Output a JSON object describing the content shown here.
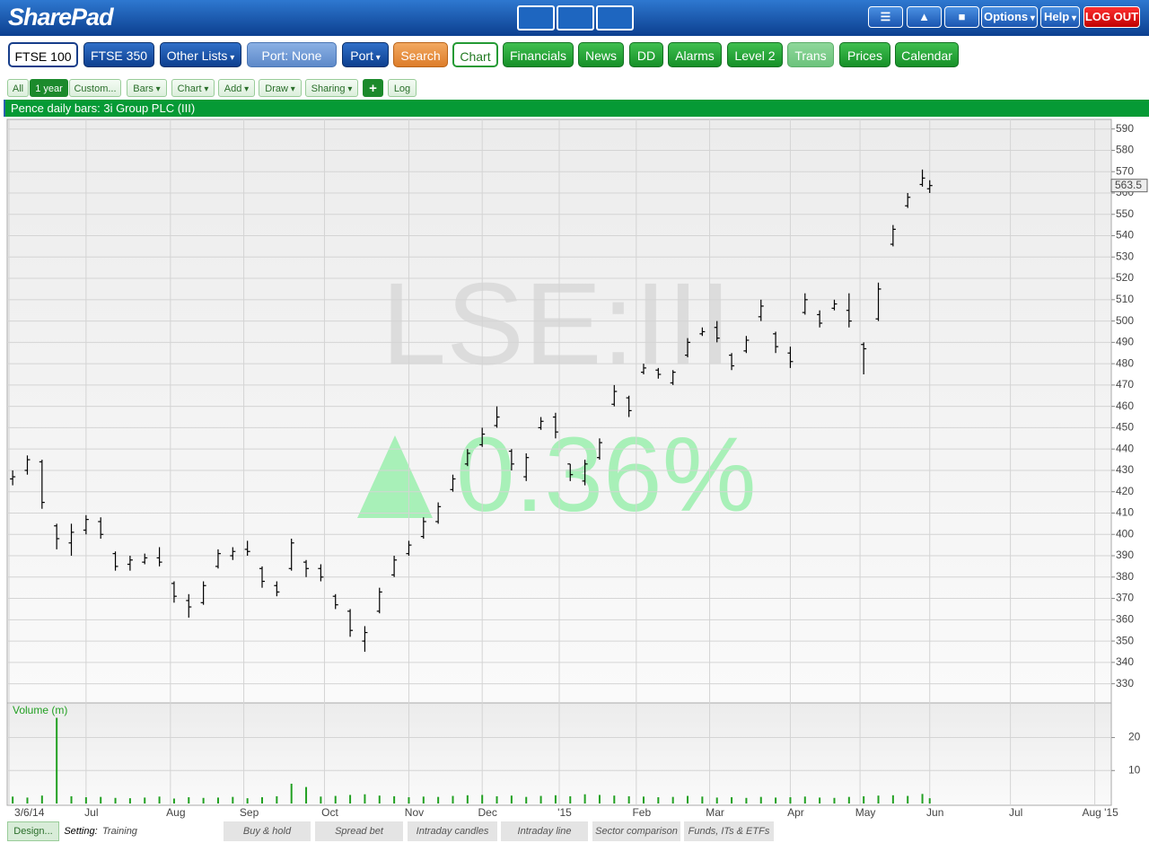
{
  "header": {
    "logo": "SharePad",
    "buttons": [
      "Options",
      "Help",
      "LOG OUT"
    ]
  },
  "nav": [
    "FTSE 100",
    "FTSE 350",
    "Other Lists",
    "Port: None",
    "Port",
    "Search",
    "Chart",
    "Financials",
    "News",
    "DD",
    "Alarms",
    "Level 2",
    "Trans",
    "Prices",
    "Calendar"
  ],
  "toolbar": [
    "All",
    "1 year",
    "Custom...",
    "Bars",
    "Chart",
    "Add",
    "Draw",
    "Sharing",
    "Log"
  ],
  "chart_data": {
    "type": "ohlc",
    "title": "Pence daily bars: 3i Group PLC (III)",
    "watermark": "LSE:III",
    "change_label": "0.36%",
    "color": "#000000",
    "grid": true,
    "x": [
      0,
      4,
      8,
      12,
      16,
      20,
      24,
      28,
      32,
      36,
      40,
      44,
      48,
      52,
      56,
      60,
      64,
      68,
      72,
      76,
      80,
      84,
      88,
      92,
      96,
      100,
      104,
      108,
      112,
      116,
      120,
      124,
      128,
      132,
      136,
      140,
      144,
      148,
      152,
      156,
      160,
      164,
      168,
      172,
      176,
      180,
      184,
      188,
      192,
      196,
      200,
      204,
      208,
      212,
      216,
      220,
      224,
      228,
      232,
      236,
      240,
      244,
      248,
      250
    ],
    "open": [
      426,
      430,
      434,
      404,
      396,
      402,
      406,
      391,
      386,
      387,
      389,
      377,
      369,
      368,
      385,
      390,
      393,
      384,
      376,
      384,
      387,
      384,
      371,
      364,
      350,
      364,
      381,
      391,
      399,
      406,
      421,
      433,
      442,
      451,
      439,
      427,
      450,
      455,
      433,
      425,
      436,
      461,
      464,
      476,
      477,
      471,
      484,
      494,
      497,
      484,
      486,
      502,
      494,
      485,
      504,
      503,
      506,
      505,
      489,
      501,
      536,
      554,
      564,
      562
    ],
    "high": [
      430,
      437,
      435,
      405,
      405,
      409,
      408,
      392,
      390,
      391,
      394,
      378,
      372,
      378,
      393,
      394,
      397,
      385,
      378,
      398,
      388,
      386,
      372,
      365,
      357,
      375,
      390,
      397,
      408,
      415,
      428,
      440,
      450,
      460,
      440,
      438,
      455,
      457,
      433,
      435,
      445,
      470,
      465,
      480,
      478,
      477,
      492,
      497,
      500,
      485,
      493,
      510,
      495,
      488,
      513,
      505,
      510,
      513,
      490,
      518,
      545,
      560,
      571,
      566
    ],
    "low": [
      423,
      428,
      412,
      393,
      390,
      400,
      398,
      383,
      383,
      386,
      385,
      368,
      361,
      367,
      384,
      388,
      390,
      375,
      371,
      383,
      380,
      378,
      365,
      352,
      345,
      363,
      380,
      390,
      398,
      405,
      420,
      432,
      441,
      450,
      430,
      425,
      449,
      445,
      425,
      423,
      435,
      460,
      455,
      475,
      473,
      470,
      483,
      493,
      490,
      477,
      485,
      500,
      485,
      478,
      503,
      497,
      505,
      497,
      475,
      500,
      535,
      553,
      563,
      560
    ],
    "close": [
      427,
      435,
      415,
      398,
      401,
      407,
      400,
      385,
      388,
      389,
      387,
      371,
      366,
      376,
      391,
      392,
      392,
      378,
      373,
      396,
      384,
      380,
      367,
      355,
      354,
      373,
      388,
      395,
      406,
      413,
      426,
      438,
      447,
      455,
      433,
      436,
      453,
      448,
      428,
      433,
      443,
      467,
      458,
      478,
      475,
      476,
      490,
      495,
      492,
      479,
      491,
      507,
      488,
      481,
      510,
      499,
      508,
      500,
      487,
      515,
      543,
      558,
      567,
      563.5
    ],
    "xlim": [
      -1.5,
      299.5
    ],
    "xticks": [
      {
        "value": -1,
        "label": "3/6/14"
      },
      {
        "value": 20,
        "label": "Jul"
      },
      {
        "value": 43,
        "label": "Aug"
      },
      {
        "value": 63,
        "label": "Sep"
      },
      {
        "value": 85,
        "label": "Oct"
      },
      {
        "value": 108,
        "label": "Nov"
      },
      {
        "value": 128,
        "label": "Dec"
      },
      {
        "value": 149,
        "label": "'15"
      },
      {
        "value": 170,
        "label": "Feb"
      },
      {
        "value": 190,
        "label": "Mar"
      },
      {
        "value": 212,
        "label": "Apr"
      },
      {
        "value": 231,
        "label": "May"
      },
      {
        "value": 250,
        "label": "Jun"
      },
      {
        "value": 272,
        "label": "Jul"
      },
      {
        "value": 295,
        "label": "Aug '15"
      }
    ],
    "ylim": [
      321,
      594.5
    ],
    "yticks": [
      330,
      340,
      350,
      360,
      370,
      380,
      390,
      400,
      410,
      420,
      430,
      440,
      450,
      460,
      470,
      480,
      490,
      500,
      510,
      520,
      530,
      540,
      550,
      560,
      570,
      580,
      590
    ],
    "volume": {
      "title": "Volume (m)",
      "color": "#22a022",
      "ylim": [
        0,
        30.5
      ],
      "yticks": [
        10,
        20
      ],
      "values": [
        2.1,
        1.8,
        2.4,
        26,
        2.2,
        1.9,
        2.0,
        1.7,
        1.6,
        1.8,
        2.1,
        1.5,
        1.9,
        1.7,
        1.8,
        2.0,
        1.6,
        1.9,
        2.2,
        6,
        5,
        2.1,
        2.3,
        2.6,
        2.8,
        2.4,
        2.2,
        1.9,
        2.1,
        2.0,
        2.3,
        2.5,
        2.6,
        2.2,
        2.4,
        2.0,
        2.3,
        2.5,
        2.2,
        2.8,
        2.6,
        2.4,
        2.2,
        2.1,
        1.9,
        2.0,
        2.3,
        2.1,
        1.8,
        1.9,
        1.7,
        2.0,
        1.8,
        1.9,
        2.1,
        1.8,
        1.7,
        2.0,
        2.2,
        2.4,
        2.5,
        2.3,
        2.9,
        1.6
      ]
    }
  },
  "footer": {
    "design": "Design...",
    "setting_label": "Setting:",
    "setting_value": "Training",
    "tabs": [
      "Buy & hold",
      "Spread bet",
      "Intraday candles",
      "Intraday line",
      "Sector comparison",
      "Funds, ITs & ETFs"
    ]
  }
}
